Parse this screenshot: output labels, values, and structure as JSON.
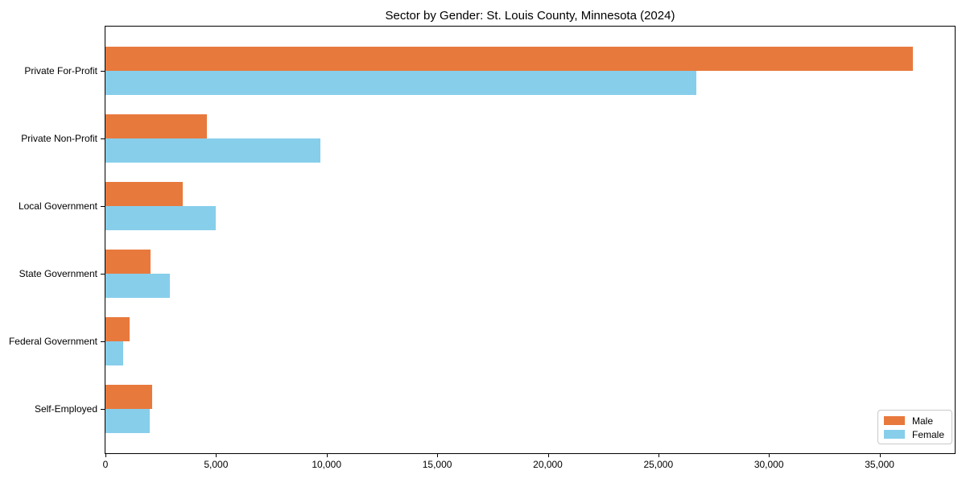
{
  "chart_data": {
    "type": "bar",
    "orientation": "horizontal",
    "title": "Sector by Gender: St. Louis County, Minnesota (2024)",
    "categories": [
      "Private For-Profit",
      "Private Non-Profit",
      "Local Government",
      "State Government",
      "Federal Government",
      "Self-Employed"
    ],
    "series": [
      {
        "name": "Male",
        "color": "#E8793D",
        "values": [
          36500,
          4600,
          3500,
          2050,
          1100,
          2100
        ]
      },
      {
        "name": "Female",
        "color": "#87CEEB",
        "values": [
          26700,
          9700,
          5000,
          2900,
          800,
          2000
        ]
      }
    ],
    "xlabel": "",
    "ylabel": "",
    "xlim": [
      0,
      38400
    ],
    "x_ticks": [
      0,
      5000,
      10000,
      15000,
      20000,
      25000,
      30000,
      35000
    ],
    "x_tick_labels": [
      "0",
      "5,000",
      "10,000",
      "15,000",
      "20,000",
      "25,000",
      "30,000",
      "35,000"
    ],
    "grid": false,
    "legend": {
      "position": "lower right",
      "entries": [
        "Male",
        "Female"
      ]
    },
    "colors": {
      "axis": "#000000",
      "background": "#ffffff",
      "legend_border": "#c9c9c9"
    }
  }
}
